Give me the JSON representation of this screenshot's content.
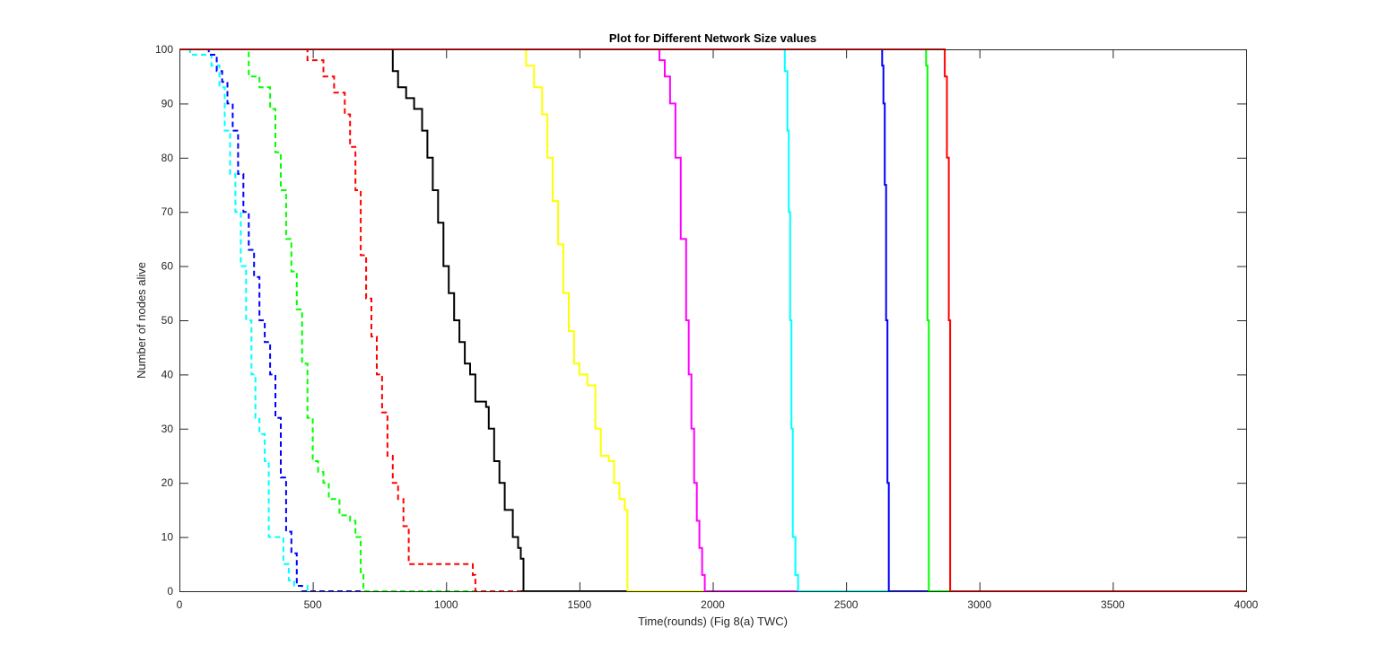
{
  "chart_data": {
    "type": "line",
    "title": "Plot for Different Network Size values",
    "xlabel": "Time(rounds) (Fig 8(a) TWC)",
    "ylabel": "Number of nodes alive",
    "xlim": [
      0,
      4000
    ],
    "ylim": [
      0,
      100
    ],
    "xticks": [
      0,
      500,
      1000,
      1500,
      2000,
      2500,
      3000,
      3500,
      4000
    ],
    "yticks": [
      0,
      10,
      20,
      30,
      40,
      50,
      60,
      70,
      80,
      90,
      100
    ],
    "grid": false,
    "legend": "none",
    "series": [
      {
        "color": "#00ffff",
        "dashed": true,
        "x": [
          0,
          40,
          80,
          120,
          150,
          170,
          190,
          210,
          230,
          250,
          270,
          285,
          300,
          320,
          335,
          350,
          370,
          390,
          410,
          430,
          480,
          4000
        ],
        "y": [
          100,
          99,
          99,
          97,
          93,
          85,
          77,
          70,
          60,
          50,
          40,
          32,
          29,
          24,
          10,
          10,
          10,
          5,
          2,
          1,
          0,
          0
        ]
      },
      {
        "color": "#0000ff",
        "dashed": true,
        "x": [
          0,
          80,
          110,
          140,
          160,
          180,
          200,
          220,
          240,
          260,
          280,
          300,
          320,
          340,
          360,
          380,
          400,
          420,
          440,
          460,
          4000
        ],
        "y": [
          100,
          100,
          99,
          96,
          94,
          90,
          85,
          77,
          70,
          63,
          58,
          50,
          46,
          40,
          32,
          21,
          11,
          7,
          1,
          0,
          0
        ]
      },
      {
        "color": "#00ff00",
        "dashed": true,
        "x": [
          0,
          230,
          260,
          300,
          340,
          360,
          380,
          400,
          420,
          440,
          460,
          480,
          500,
          520,
          540,
          560,
          600,
          640,
          660,
          680,
          690,
          4000
        ],
        "y": [
          100,
          100,
          95,
          93,
          89,
          81,
          74,
          65,
          59,
          52,
          42,
          32,
          24,
          22,
          20,
          17,
          14,
          13,
          10,
          3,
          0,
          0
        ]
      },
      {
        "color": "#ff0000",
        "dashed": true,
        "x": [
          0,
          420,
          480,
          540,
          580,
          620,
          640,
          660,
          680,
          700,
          720,
          740,
          760,
          780,
          800,
          820,
          840,
          860,
          1080,
          1100,
          1110,
          4000
        ],
        "y": [
          100,
          100,
          98,
          95,
          92,
          88,
          82,
          74,
          62,
          54,
          47,
          40,
          33,
          25,
          20,
          17,
          12,
          5,
          5,
          3,
          0,
          0
        ]
      },
      {
        "color": "#000000",
        "dashed": true,
        "x": [
          1280,
          4000
        ],
        "y": [
          0,
          0
        ]
      },
      {
        "color": "#000000",
        "dashed": false,
        "x": [
          0,
          780,
          800,
          820,
          850,
          880,
          910,
          930,
          950,
          970,
          990,
          1010,
          1030,
          1050,
          1070,
          1090,
          1110,
          1150,
          1160,
          1180,
          1200,
          1220,
          1250,
          1270,
          1280,
          1290,
          4000
        ],
        "y": [
          100,
          100,
          96,
          93,
          91,
          89,
          85,
          80,
          74,
          68,
          60,
          55,
          50,
          46,
          42,
          40,
          35,
          34,
          30,
          24,
          20,
          15,
          10,
          8,
          6,
          0,
          0
        ]
      },
      {
        "color": "#ffff00",
        "dashed": false,
        "x": [
          0,
          1280,
          1300,
          1330,
          1360,
          1380,
          1400,
          1420,
          1440,
          1460,
          1480,
          1500,
          1530,
          1560,
          1580,
          1610,
          1630,
          1650,
          1670,
          1680,
          4000
        ],
        "y": [
          100,
          100,
          97,
          93,
          88,
          80,
          72,
          64,
          55,
          48,
          42,
          40,
          38,
          30,
          25,
          24,
          20,
          17,
          15,
          0,
          0
        ]
      },
      {
        "color": "#ff00ff",
        "dashed": false,
        "x": [
          0,
          1760,
          1800,
          1820,
          1840,
          1860,
          1880,
          1900,
          1910,
          1920,
          1930,
          1940,
          1950,
          1960,
          1970,
          4000
        ],
        "y": [
          100,
          100,
          98,
          95,
          90,
          80,
          65,
          50,
          40,
          30,
          20,
          13,
          8,
          3,
          0,
          0
        ]
      },
      {
        "color": "#00ffff",
        "dashed": false,
        "x": [
          0,
          2250,
          2270,
          2280,
          2285,
          2290,
          2295,
          2300,
          2310,
          2320,
          4000
        ],
        "y": [
          100,
          100,
          96,
          85,
          70,
          50,
          30,
          10,
          3,
          0,
          0
        ]
      },
      {
        "color": "#0000ff",
        "dashed": false,
        "x": [
          0,
          2620,
          2635,
          2640,
          2645,
          2650,
          2655,
          2660,
          4000
        ],
        "y": [
          100,
          100,
          97,
          90,
          75,
          50,
          20,
          0,
          0
        ]
      },
      {
        "color": "#00ff00",
        "dashed": false,
        "x": [
          0,
          2785,
          2800,
          2805,
          2810,
          4000
        ],
        "y": [
          100,
          100,
          97,
          50,
          0,
          0
        ]
      },
      {
        "color": "#ff0000",
        "dashed": false,
        "x": [
          0,
          2855,
          2870,
          2878,
          2885,
          2890,
          4000
        ],
        "y": [
          100,
          100,
          95,
          80,
          50,
          0,
          0
        ]
      }
    ]
  }
}
